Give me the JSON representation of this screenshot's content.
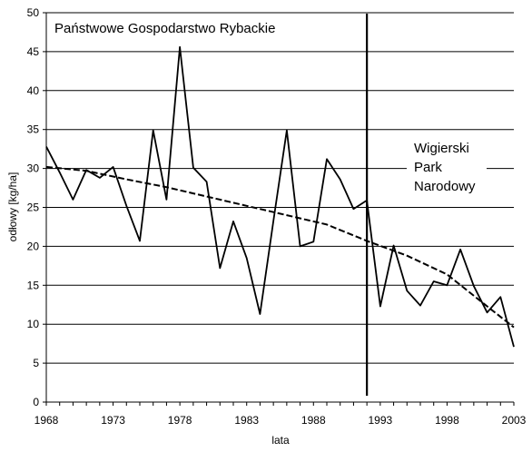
{
  "chart_data": {
    "type": "line",
    "xlabel": "lata",
    "ylabel": "odłowy [kg/ha]",
    "xlim": [
      1968,
      2003
    ],
    "ylim": [
      0,
      50
    ],
    "grid": "horizontal",
    "x_ticks": [
      "1968",
      "1973",
      "1978",
      "1983",
      "1988",
      "1993",
      "1998",
      "2003"
    ],
    "y_ticks": [
      "0",
      "5",
      "10",
      "15",
      "20",
      "25",
      "30",
      "35",
      "40",
      "45",
      "50"
    ],
    "annotations": {
      "left_period": "Państwowe Gospodarstwo Rybackie",
      "right_period": [
        "Wigierski",
        "Park",
        "Narodowy"
      ]
    },
    "divider_year": 1992,
    "series": [
      {
        "style": "solid",
        "x": [
          1968,
          1969,
          1970,
          1971,
          1972,
          1973,
          1974,
          1975,
          1976,
          1977,
          1978,
          1979,
          1980,
          1981,
          1982,
          1983,
          1984,
          1985,
          1986,
          1987,
          1988,
          1989,
          1990,
          1991,
          1992,
          1993,
          1994,
          1995,
          1996,
          1997,
          1998,
          1999,
          2000,
          2001,
          2002,
          2003
        ],
        "values": [
          32.8,
          29.5,
          26.0,
          29.8,
          28.8,
          30.2,
          25.2,
          20.7,
          34.9,
          26.0,
          45.6,
          30.1,
          28.3,
          17.2,
          23.2,
          18.5,
          11.3,
          23.2,
          34.9,
          20.0,
          20.6,
          31.2,
          28.6,
          24.8,
          25.9,
          12.3,
          20.1,
          14.3,
          12.4,
          15.5,
          15.0,
          19.6,
          14.9,
          11.5,
          13.5,
          7.1
        ]
      },
      {
        "style": "dashed",
        "x": [
          1968,
          1971,
          1974,
          1977,
          1980,
          1983,
          1986,
          1989,
          1992,
          1995,
          1998,
          2001,
          2003
        ],
        "values": [
          30.2,
          29.7,
          28.6,
          27.6,
          26.4,
          25.2,
          24.0,
          22.8,
          20.7,
          18.8,
          16.4,
          12.3,
          9.6
        ]
      }
    ]
  }
}
